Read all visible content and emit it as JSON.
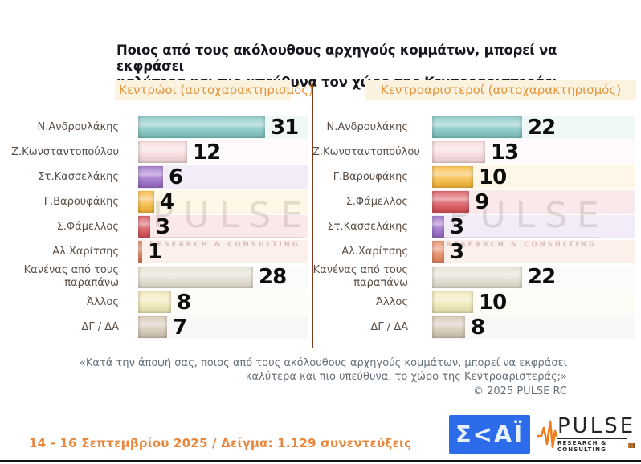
{
  "title": {
    "line1": "Ποιος από τους ακόλουθους αρχηγούς κομμάτων, μπορεί να εκφράσει",
    "line2": "καλύτερα και πιο υπεύθυνα τον χώρο της Κεντροαριστεράς;"
  },
  "watermark": {
    "word": "PULSE",
    "sub": "RESEARCH & CONSULTING"
  },
  "footnote": {
    "quote_line1": "«Κατά την άποψή σας, ποιος από τους ακόλουθους αρχηγούς κομμάτων, μπορεί να εκφράσει",
    "quote_line2": "καλύτερα και πιο υπεύθυνα, το χώρο της Κεντροαριστεράς;»",
    "copyright": "©  2025  PULSE RC"
  },
  "footer": {
    "survey_info": "14 - 16 Σεπτεμβρίου 2025  /  Δείγμα:  1.129 συνεντεύξεις",
    "skai_logo_text": "Σ<ΑΪ",
    "pulse_logo_word": "PULSE",
    "pulse_logo_sub": "RESEARCH & CONSULTING"
  },
  "colors": {
    "accent_orange": "#e2953f",
    "divider_brown": "#7e3c20",
    "skai_blue": "#2c6cea",
    "pulse_orange": "#ee7d1e"
  },
  "chart_data": [
    {
      "type": "bar",
      "orientation": "horizontal",
      "title": "Κεντρώοι  (αυτοχαρακτηρισμός)",
      "categories": [
        "Ν.Ανδρουλάκης",
        "Ζ.Κωνσταντοπούλου",
        "Στ.Κασσελάκης",
        "Γ.Βαρουφάκης",
        "Σ.Φάμελλος",
        "Αλ.Χαρίτσης",
        "Κανένας από τους παραπάνω",
        "Άλλος",
        "ΔΓ / ΔΑ"
      ],
      "values": [
        31,
        12,
        6,
        4,
        3,
        1,
        28,
        8,
        7
      ],
      "bar_colors": [
        "#82c7c3",
        "#f7dadd",
        "#9d6fc9",
        "#f7b93e",
        "#d9545c",
        "#e98a63",
        "#e3dfd0",
        "#f0e8b6",
        "#d6c8b6"
      ],
      "xlim": [
        0,
        42
      ],
      "value_labels_shown": true,
      "grid": false,
      "legend": false
    },
    {
      "type": "bar",
      "orientation": "horizontal",
      "title": "Κεντροαριστεροί  (αυτοχαρακτηρισμός)",
      "categories": [
        "Ν.Ανδρουλάκης",
        "Ζ.Κωνσταντοπούλου",
        "Γ.Βαρουφάκης",
        "Σ.Φάμελλος",
        "Στ.Κασσελάκης",
        "Αλ.Χαρίτσης",
        "Κανένας από τους παραπάνω",
        "Άλλος",
        "ΔΓ / ΔΑ"
      ],
      "values": [
        22,
        13,
        10,
        9,
        3,
        3,
        22,
        10,
        8
      ],
      "bar_colors": [
        "#82c7c3",
        "#f7dadd",
        "#f7b93e",
        "#d9545c",
        "#9d6fc9",
        "#e98a63",
        "#e3dfd0",
        "#f0e8b6",
        "#d6c8b6"
      ],
      "xlim": [
        0,
        42
      ],
      "value_labels_shown": true,
      "grid": false,
      "legend": false
    }
  ]
}
